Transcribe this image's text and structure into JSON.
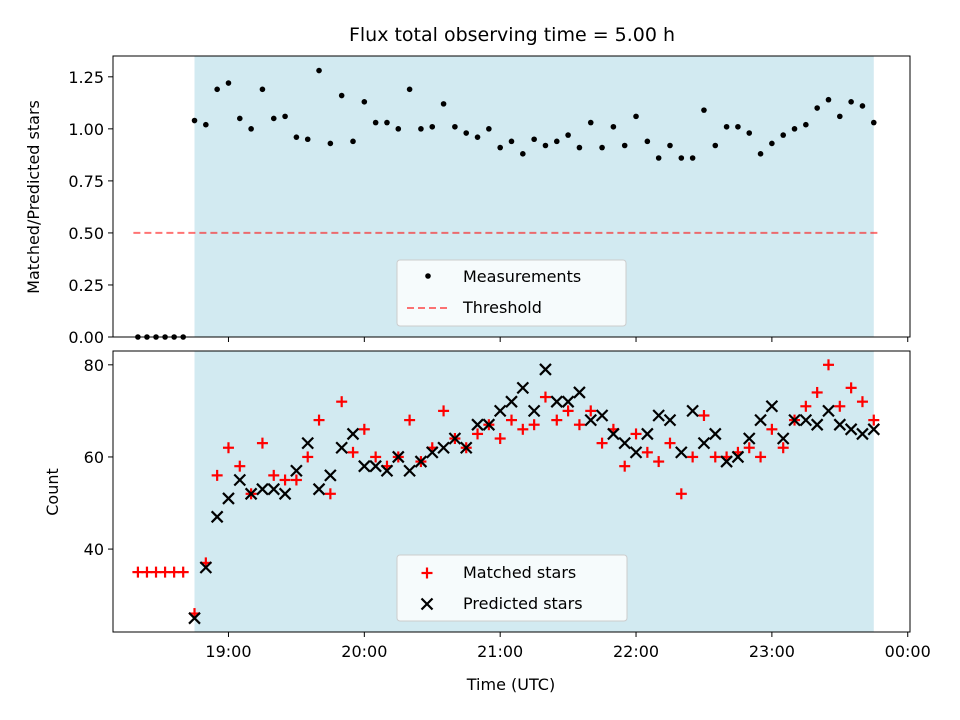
{
  "figure": {
    "title": "Flux total observing time = 5.00 h"
  },
  "colors": {
    "shade": "#add8e6",
    "measurement": "#000000",
    "threshold": "#ff0000",
    "matched": "#ff0000",
    "predicted": "#000000"
  },
  "chart_data": [
    {
      "type": "scatter",
      "panel": "top",
      "title": "Flux total observing time = 5.00 h",
      "xlabel": "",
      "ylabel": "Matched/Predicted stars",
      "xlim": [
        "18:09",
        "00:01"
      ],
      "ylim": [
        0.0,
        1.35
      ],
      "yticks": [
        "0.00",
        "0.25",
        "0.50",
        "0.75",
        "1.00",
        "1.25"
      ],
      "shaded_interval": [
        "18:45",
        "23:45"
      ],
      "legend_position": "lower center",
      "series": [
        {
          "name": "Measurements",
          "marker": "dot",
          "x": [
            "18:20",
            "18:24",
            "18:28",
            "18:32",
            "18:36",
            "18:40",
            "18:45",
            "18:50",
            "18:55",
            "19:00",
            "19:05",
            "19:10",
            "19:15",
            "19:20",
            "19:25",
            "19:30",
            "19:35",
            "19:40",
            "19:45",
            "19:50",
            "19:55",
            "20:00",
            "20:05",
            "20:10",
            "20:15",
            "20:20",
            "20:25",
            "20:30",
            "20:35",
            "20:40",
            "20:45",
            "20:50",
            "20:55",
            "21:00",
            "21:05",
            "21:10",
            "21:15",
            "21:20",
            "21:25",
            "21:30",
            "21:35",
            "21:40",
            "21:45",
            "21:50",
            "21:55",
            "22:00",
            "22:05",
            "22:10",
            "22:15",
            "22:20",
            "22:25",
            "22:30",
            "22:35",
            "22:40",
            "22:45",
            "22:50",
            "22:55",
            "23:00",
            "23:05",
            "23:10",
            "23:15",
            "23:20",
            "23:25",
            "23:30",
            "23:35",
            "23:40",
            "23:45"
          ],
          "y": [
            0.0,
            0.0,
            0.0,
            0.0,
            0.0,
            0.0,
            1.04,
            1.02,
            1.19,
            1.22,
            1.05,
            1.0,
            1.19,
            1.05,
            1.06,
            0.96,
            0.95,
            1.28,
            0.93,
            1.16,
            0.94,
            1.13,
            1.03,
            1.03,
            1.0,
            1.19,
            1.0,
            1.01,
            1.12,
            1.01,
            0.98,
            0.96,
            1.0,
            0.91,
            0.94,
            0.88,
            0.95,
            0.92,
            0.94,
            0.97,
            0.91,
            1.03,
            0.91,
            1.01,
            0.92,
            1.06,
            0.94,
            0.86,
            0.92,
            0.86,
            0.86,
            1.09,
            0.92,
            1.01,
            1.01,
            0.98,
            0.88,
            0.93,
            0.97,
            1.0,
            1.02,
            1.1,
            1.14,
            1.06,
            1.13,
            1.11,
            1.03
          ]
        },
        {
          "name": "Threshold",
          "style": "dashed",
          "x": [
            "18:18",
            "23:48"
          ],
          "y": [
            0.5,
            0.5
          ]
        }
      ]
    },
    {
      "type": "scatter",
      "panel": "bottom",
      "xlabel": "Time (UTC)",
      "ylabel": "Count",
      "xlim": [
        "18:09",
        "00:01"
      ],
      "ylim": [
        22,
        83
      ],
      "yticks": [
        "40",
        "60",
        "80"
      ],
      "xticks": [
        "19:00",
        "20:00",
        "21:00",
        "22:00",
        "23:00",
        "00:00"
      ],
      "shaded_interval": [
        "18:45",
        "23:45"
      ],
      "legend_position": "lower center",
      "series": [
        {
          "name": "Matched stars",
          "marker": "plus",
          "x": [
            "18:20",
            "18:24",
            "18:28",
            "18:32",
            "18:36",
            "18:40",
            "18:45",
            "18:50",
            "18:55",
            "19:00",
            "19:05",
            "19:10",
            "19:15",
            "19:20",
            "19:25",
            "19:30",
            "19:35",
            "19:40",
            "19:45",
            "19:50",
            "19:55",
            "20:00",
            "20:05",
            "20:10",
            "20:15",
            "20:20",
            "20:25",
            "20:30",
            "20:35",
            "20:40",
            "20:45",
            "20:50",
            "20:55",
            "21:00",
            "21:05",
            "21:10",
            "21:15",
            "21:20",
            "21:25",
            "21:30",
            "21:35",
            "21:40",
            "21:45",
            "21:50",
            "21:55",
            "22:00",
            "22:05",
            "22:10",
            "22:15",
            "22:20",
            "22:25",
            "22:30",
            "22:35",
            "22:40",
            "22:45",
            "22:50",
            "22:55",
            "23:00",
            "23:05",
            "23:10",
            "23:15",
            "23:20",
            "23:25",
            "23:30",
            "23:35",
            "23:40",
            "23:45"
          ],
          "y": [
            35,
            35,
            35,
            35,
            35,
            35,
            26,
            37,
            56,
            62,
            58,
            52,
            63,
            56,
            55,
            55,
            60,
            68,
            52,
            72,
            61,
            66,
            60,
            58,
            60,
            68,
            59,
            62,
            70,
            64,
            62,
            65,
            67,
            64,
            68,
            66,
            67,
            73,
            68,
            70,
            67,
            70,
            63,
            66,
            58,
            65,
            61,
            59,
            63,
            52,
            60,
            69,
            60,
            60,
            61,
            62,
            60,
            66,
            62,
            68,
            71,
            74,
            80,
            71,
            75,
            72,
            68
          ]
        },
        {
          "name": "Predicted stars",
          "marker": "x",
          "x": [
            "18:45",
            "18:50",
            "18:55",
            "19:00",
            "19:05",
            "19:10",
            "19:15",
            "19:20",
            "19:25",
            "19:30",
            "19:35",
            "19:40",
            "19:45",
            "19:50",
            "19:55",
            "20:00",
            "20:05",
            "20:10",
            "20:15",
            "20:20",
            "20:25",
            "20:30",
            "20:35",
            "20:40",
            "20:45",
            "20:50",
            "20:55",
            "21:00",
            "21:05",
            "21:10",
            "21:15",
            "21:20",
            "21:25",
            "21:30",
            "21:35",
            "21:40",
            "21:45",
            "21:50",
            "21:55",
            "22:00",
            "22:05",
            "22:10",
            "22:15",
            "22:20",
            "22:25",
            "22:30",
            "22:35",
            "22:40",
            "22:45",
            "22:50",
            "22:55",
            "23:00",
            "23:05",
            "23:10",
            "23:15",
            "23:20",
            "23:25",
            "23:30",
            "23:35",
            "23:40",
            "23:45"
          ],
          "y": [
            25,
            36,
            47,
            51,
            55,
            52,
            53,
            53,
            52,
            57,
            63,
            53,
            56,
            62,
            65,
            58,
            58,
            57,
            60,
            57,
            59,
            61,
            62,
            64,
            62,
            67,
            67,
            70,
            72,
            75,
            70,
            79,
            72,
            72,
            74,
            68,
            69,
            65,
            63,
            61,
            65,
            69,
            68,
            61,
            70,
            63,
            65,
            59,
            60,
            64,
            68,
            71,
            64,
            68,
            68,
            67,
            70,
            67,
            66,
            65,
            66
          ]
        }
      ]
    }
  ]
}
